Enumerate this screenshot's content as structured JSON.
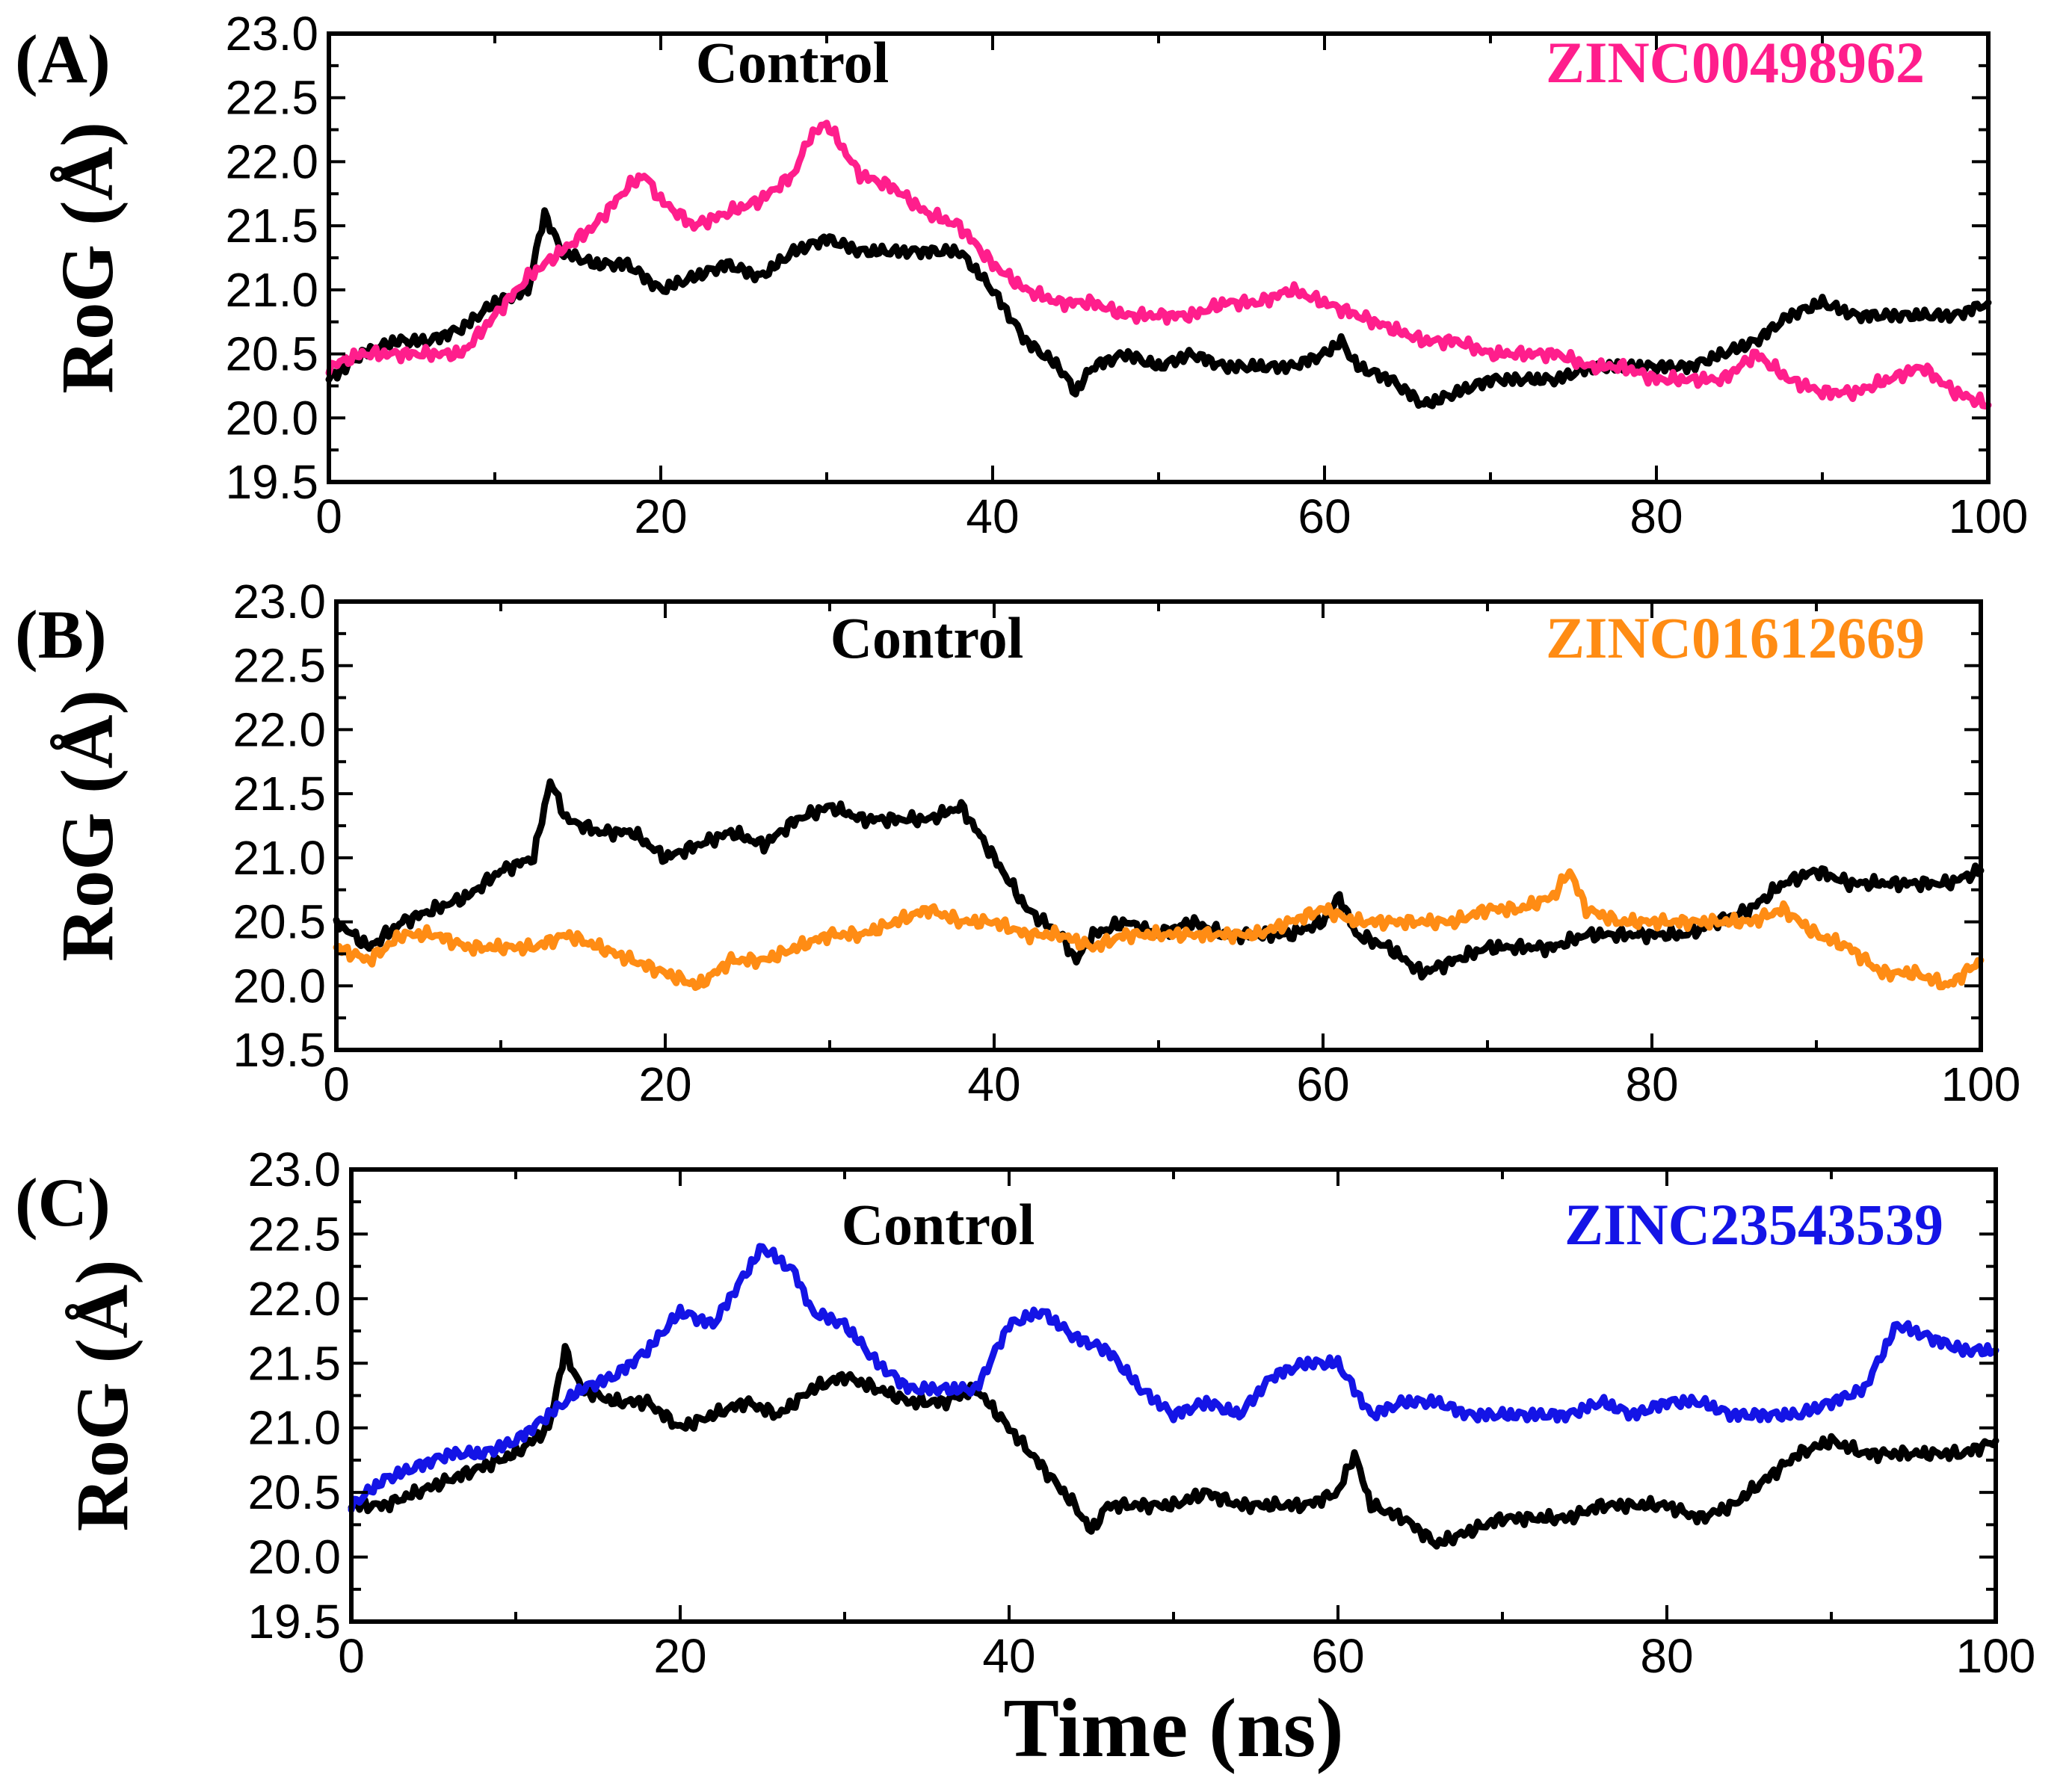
{
  "chart_data": [
    {
      "type": "line",
      "panel_label": "(A)",
      "xlabel": "",
      "ylabel": "RoG (Å)",
      "xlim": [
        0,
        100
      ],
      "ylim": [
        19.5,
        23.0
      ],
      "xticks": [
        "0",
        "20",
        "40",
        "60",
        "80",
        "100"
      ],
      "yticks": [
        "19.5",
        "20.0",
        "20.5",
        "21.0",
        "21.5",
        "22.0",
        "22.5",
        "23.0"
      ],
      "series": [
        {
          "name": "Control",
          "color": "#000000",
          "x": [
            0,
            2,
            4,
            6,
            8,
            10,
            12,
            13,
            14,
            16,
            18,
            20,
            22,
            24,
            26,
            28,
            30,
            32,
            34,
            36,
            38,
            40,
            42,
            44,
            45,
            46,
            48,
            50,
            52,
            54,
            56,
            58,
            60,
            61,
            62,
            64,
            66,
            68,
            70,
            72,
            74,
            76,
            78,
            80,
            82,
            84,
            86,
            88,
            90,
            92,
            94,
            96,
            98,
            100
          ],
          "y": [
            20.3,
            20.5,
            20.6,
            20.6,
            20.7,
            20.9,
            21.0,
            21.6,
            21.3,
            21.2,
            21.2,
            21.0,
            21.1,
            21.2,
            21.1,
            21.3,
            21.4,
            21.3,
            21.3,
            21.3,
            21.3,
            21.0,
            20.6,
            20.4,
            20.2,
            20.4,
            20.5,
            20.4,
            20.5,
            20.4,
            20.4,
            20.4,
            20.5,
            20.6,
            20.4,
            20.3,
            20.1,
            20.2,
            20.3,
            20.3,
            20.3,
            20.4,
            20.4,
            20.4,
            20.4,
            20.5,
            20.6,
            20.8,
            20.9,
            20.8,
            20.8,
            20.8,
            20.8,
            20.9
          ]
        },
        {
          "name": "ZINC00498962",
          "color": "#ff1e8c",
          "x": [
            0,
            2,
            4,
            6,
            8,
            10,
            12,
            14,
            16,
            18,
            19,
            20,
            22,
            24,
            26,
            28,
            29,
            30,
            31,
            32,
            34,
            36,
            38,
            40,
            42,
            44,
            46,
            48,
            50,
            52,
            54,
            56,
            58,
            60,
            62,
            64,
            66,
            68,
            70,
            72,
            74,
            76,
            78,
            80,
            82,
            84,
            86,
            88,
            90,
            92,
            94,
            96,
            98,
            100
          ],
          "y": [
            20.4,
            20.5,
            20.5,
            20.5,
            20.5,
            20.8,
            21.1,
            21.3,
            21.5,
            21.8,
            21.9,
            21.7,
            21.5,
            21.6,
            21.7,
            21.9,
            22.2,
            22.3,
            22.1,
            21.9,
            21.8,
            21.6,
            21.5,
            21.2,
            21.0,
            20.9,
            20.9,
            20.8,
            20.8,
            20.8,
            20.9,
            20.9,
            21.0,
            20.9,
            20.8,
            20.7,
            20.6,
            20.6,
            20.5,
            20.5,
            20.5,
            20.4,
            20.4,
            20.3,
            20.3,
            20.3,
            20.5,
            20.3,
            20.2,
            20.2,
            20.3,
            20.4,
            20.2,
            20.1
          ]
        }
      ]
    },
    {
      "type": "line",
      "panel_label": "(B)",
      "xlabel": "",
      "ylabel": "RoG (Å)",
      "xlim": [
        0,
        100
      ],
      "ylim": [
        19.5,
        23.0
      ],
      "xticks": [
        "0",
        "20",
        "40",
        "60",
        "80",
        "100"
      ],
      "yticks": [
        "19.5",
        "20.0",
        "20.5",
        "21.0",
        "21.5",
        "22.0",
        "22.5",
        "23.0"
      ],
      "series": [
        {
          "name": "Control",
          "color": "#000000",
          "x": [
            0,
            2,
            4,
            6,
            8,
            10,
            12,
            13,
            14,
            16,
            18,
            20,
            22,
            24,
            26,
            28,
            30,
            32,
            34,
            36,
            38,
            40,
            42,
            44,
            45,
            46,
            48,
            50,
            52,
            54,
            56,
            58,
            60,
            61,
            62,
            64,
            66,
            68,
            70,
            72,
            74,
            76,
            78,
            80,
            82,
            84,
            86,
            88,
            90,
            92,
            94,
            96,
            98,
            100
          ],
          "y": [
            20.5,
            20.3,
            20.5,
            20.6,
            20.7,
            20.9,
            21.0,
            21.6,
            21.3,
            21.2,
            21.2,
            21.0,
            21.1,
            21.2,
            21.1,
            21.3,
            21.4,
            21.3,
            21.3,
            21.3,
            21.4,
            21.0,
            20.6,
            20.4,
            20.2,
            20.4,
            20.5,
            20.4,
            20.5,
            20.4,
            20.4,
            20.4,
            20.5,
            20.7,
            20.4,
            20.3,
            20.1,
            20.2,
            20.3,
            20.3,
            20.3,
            20.4,
            20.4,
            20.4,
            20.4,
            20.5,
            20.6,
            20.8,
            20.9,
            20.8,
            20.8,
            20.8,
            20.8,
            20.9
          ]
        },
        {
          "name": "ZINC01612669",
          "color": "#ff8c14",
          "x": [
            0,
            2,
            4,
            6,
            8,
            10,
            12,
            14,
            16,
            18,
            20,
            22,
            24,
            26,
            28,
            30,
            32,
            34,
            36,
            38,
            40,
            42,
            44,
            46,
            48,
            50,
            52,
            54,
            56,
            58,
            60,
            62,
            64,
            66,
            68,
            70,
            72,
            74,
            75,
            76,
            78,
            80,
            82,
            84,
            86,
            88,
            90,
            92,
            94,
            96,
            98,
            100
          ],
          "y": [
            20.3,
            20.2,
            20.4,
            20.4,
            20.3,
            20.3,
            20.3,
            20.4,
            20.3,
            20.2,
            20.1,
            20.0,
            20.2,
            20.2,
            20.3,
            20.4,
            20.4,
            20.5,
            20.6,
            20.5,
            20.5,
            20.4,
            20.4,
            20.3,
            20.4,
            20.4,
            20.4,
            20.4,
            20.4,
            20.5,
            20.6,
            20.5,
            20.5,
            20.5,
            20.5,
            20.6,
            20.6,
            20.7,
            20.9,
            20.6,
            20.5,
            20.5,
            20.5,
            20.5,
            20.5,
            20.6,
            20.4,
            20.3,
            20.1,
            20.1,
            20.0,
            20.2
          ]
        }
      ]
    },
    {
      "type": "line",
      "panel_label": "(C)",
      "xlabel": "Time (ns)",
      "ylabel": "RoG (Å)",
      "xlim": [
        0,
        100
      ],
      "ylim": [
        19.5,
        23.0
      ],
      "xticks": [
        "0",
        "20",
        "40",
        "60",
        "80",
        "100"
      ],
      "yticks": [
        "19.5",
        "20.0",
        "20.5",
        "21.0",
        "21.5",
        "22.0",
        "22.5",
        "23.0"
      ],
      "series": [
        {
          "name": "Control",
          "color": "#000000",
          "x": [
            0,
            2,
            4,
            6,
            8,
            10,
            12,
            13,
            14,
            16,
            18,
            20,
            22,
            24,
            26,
            28,
            30,
            32,
            34,
            36,
            38,
            40,
            42,
            44,
            45,
            46,
            48,
            50,
            52,
            54,
            56,
            58,
            60,
            61,
            62,
            64,
            66,
            68,
            70,
            72,
            74,
            76,
            78,
            80,
            82,
            84,
            86,
            88,
            90,
            92,
            94,
            96,
            98,
            100
          ],
          "y": [
            20.4,
            20.4,
            20.5,
            20.6,
            20.7,
            20.8,
            21.0,
            21.6,
            21.3,
            21.2,
            21.2,
            21.0,
            21.1,
            21.2,
            21.1,
            21.3,
            21.4,
            21.3,
            21.2,
            21.2,
            21.3,
            21.0,
            20.7,
            20.4,
            20.2,
            20.4,
            20.4,
            20.4,
            20.5,
            20.4,
            20.4,
            20.4,
            20.5,
            20.8,
            20.4,
            20.3,
            20.1,
            20.2,
            20.3,
            20.3,
            20.3,
            20.4,
            20.4,
            20.4,
            20.3,
            20.4,
            20.6,
            20.8,
            20.9,
            20.8,
            20.8,
            20.8,
            20.8,
            20.9
          ]
        },
        {
          "name": "ZINC23543539",
          "color": "#1414e6",
          "x": [
            0,
            2,
            4,
            6,
            8,
            10,
            12,
            14,
            16,
            18,
            20,
            22,
            24,
            25,
            26,
            27,
            28,
            30,
            32,
            34,
            36,
            38,
            40,
            42,
            44,
            46,
            48,
            50,
            52,
            54,
            56,
            58,
            60,
            62,
            64,
            66,
            68,
            70,
            72,
            74,
            76,
            78,
            80,
            82,
            84,
            86,
            88,
            90,
            92,
            94,
            96,
            98,
            100
          ],
          "y": [
            20.4,
            20.6,
            20.7,
            20.8,
            20.8,
            20.9,
            21.1,
            21.3,
            21.4,
            21.6,
            21.9,
            21.8,
            22.2,
            22.4,
            22.3,
            22.2,
            21.9,
            21.8,
            21.5,
            21.3,
            21.3,
            21.3,
            21.8,
            21.9,
            21.7,
            21.6,
            21.3,
            21.1,
            21.2,
            21.1,
            21.4,
            21.5,
            21.5,
            21.1,
            21.2,
            21.2,
            21.1,
            21.1,
            21.1,
            21.1,
            21.2,
            21.1,
            21.2,
            21.2,
            21.1,
            21.1,
            21.1,
            21.2,
            21.3,
            21.8,
            21.7,
            21.6,
            21.6
          ]
        }
      ]
    }
  ]
}
